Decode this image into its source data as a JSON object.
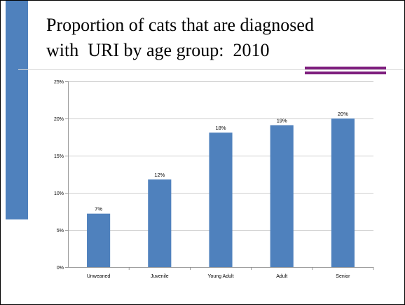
{
  "slide": {
    "title": "Proportion of cats that are diagnosed\nwith  URI by age group:  2010",
    "accent_color": "#7e1e7e",
    "sidebar_color": "#4f81bd"
  },
  "chart_data": {
    "type": "bar",
    "categories": [
      "Unweaned",
      "Juvenile",
      "Young Adult",
      "Adult",
      "Senior"
    ],
    "values": [
      7.2,
      11.8,
      18.1,
      19.1,
      20.0
    ],
    "data_labels": [
      "7%",
      "12%",
      "18%",
      "19%",
      "20%"
    ],
    "ylim": [
      0,
      25
    ],
    "yticks": [
      0,
      5,
      10,
      15,
      20,
      25
    ],
    "ytick_labels": [
      "0%",
      "5%",
      "10%",
      "15%",
      "20%",
      "25%"
    ],
    "grid": true,
    "legend": "none",
    "bar_color": "#4f81bd"
  }
}
